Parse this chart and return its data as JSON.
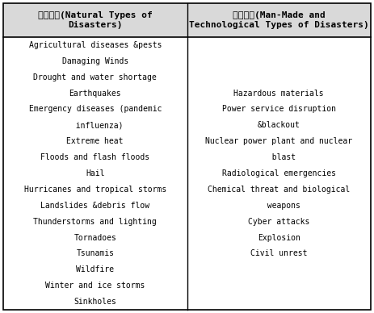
{
  "col1_header_line1": "자연재난(Natural Types of",
  "col1_header_line2": "Disasters)",
  "col2_header_line1": "사회재난(Man-Made and",
  "col2_header_line2": "Technological Types of Disasters)",
  "col1_items": [
    "Agricultural diseases &pests",
    "Damaging Winds",
    "Drought and water shortage",
    "Earthquakes",
    "Emergency diseases (pandemic",
    "  influenza)",
    "Extreme heat",
    "Floods and flash floods",
    "Hail",
    "Hurricanes and tropical storms",
    "Landslides &debris flow",
    "Thunderstorms and lighting",
    "Tornadoes",
    "Tsunamis",
    "Wildfire",
    "Winter and ice storms",
    "Sinkholes"
  ],
  "col2_items": [
    "",
    "",
    "",
    "Hazardous materials",
    "Power service disruption",
    "&blackout",
    "Nuclear power plant and nuclear",
    "  blast",
    "Radiological emergencies",
    "Chemical threat and biological",
    "  weapons",
    "Cyber attacks",
    "Explosion",
    "Civil unrest",
    "",
    "",
    ""
  ],
  "background_color": "#ffffff",
  "header_bg": "#d9d9d9",
  "border_color": "#000000",
  "text_color": "#000000",
  "font_size": 7.0,
  "header_font_size": 8.0
}
